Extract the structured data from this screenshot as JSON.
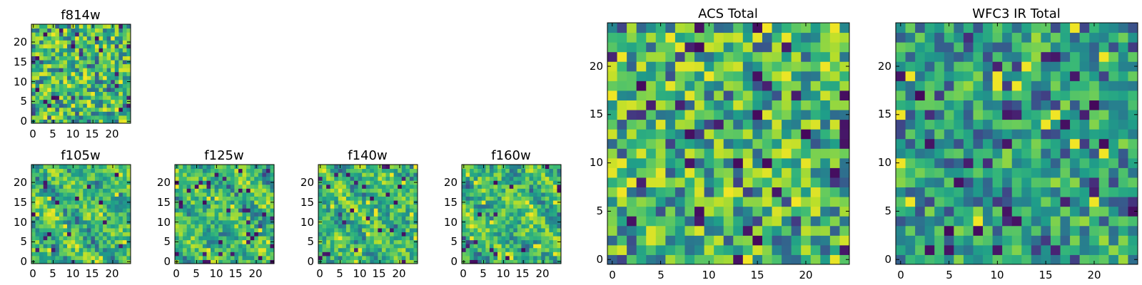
{
  "chart_data": [
    {
      "id": "f814w",
      "type": "heatmap",
      "title": "f814w",
      "xlabel": "",
      "ylabel": "",
      "xlim": [
        0,
        25
      ],
      "ylim": [
        0,
        25
      ],
      "grid_size": 25,
      "xticks": [
        "0",
        "5",
        "10",
        "15",
        "20"
      ],
      "yticks": [
        "0",
        "5",
        "10",
        "15",
        "20"
      ],
      "colormap": "viridis",
      "seed": 11,
      "lowfreq": 0.15
    },
    {
      "id": "f105w",
      "type": "heatmap",
      "title": "f105w",
      "xlabel": "",
      "ylabel": "",
      "xlim": [
        0,
        25
      ],
      "ylim": [
        0,
        25
      ],
      "grid_size": 25,
      "xticks": [
        "0",
        "5",
        "10",
        "15",
        "20"
      ],
      "yticks": [
        "0",
        "5",
        "10",
        "15",
        "20"
      ],
      "colormap": "viridis",
      "seed": 23,
      "lowfreq": 0.45
    },
    {
      "id": "f125w",
      "type": "heatmap",
      "title": "f125w",
      "xlabel": "",
      "ylabel": "",
      "xlim": [
        0,
        25
      ],
      "ylim": [
        0,
        25
      ],
      "grid_size": 25,
      "xticks": [
        "0",
        "5",
        "10",
        "15",
        "20"
      ],
      "yticks": [
        "0",
        "5",
        "10",
        "15",
        "20"
      ],
      "colormap": "viridis",
      "seed": 37,
      "lowfreq": 0.45
    },
    {
      "id": "f140w",
      "type": "heatmap",
      "title": "f140w",
      "xlabel": "",
      "ylabel": "",
      "xlim": [
        0,
        25
      ],
      "ylim": [
        0,
        25
      ],
      "grid_size": 25,
      "xticks": [
        "0",
        "5",
        "10",
        "15",
        "20"
      ],
      "yticks": [
        "0",
        "5",
        "10",
        "15",
        "20"
      ],
      "colormap": "viridis",
      "seed": 41,
      "lowfreq": 0.45
    },
    {
      "id": "f160w",
      "type": "heatmap",
      "title": "f160w",
      "xlabel": "",
      "ylabel": "",
      "xlim": [
        0,
        25
      ],
      "ylim": [
        0,
        25
      ],
      "grid_size": 25,
      "xticks": [
        "0",
        "5",
        "10",
        "15",
        "20"
      ],
      "yticks": [
        "0",
        "5",
        "10",
        "15",
        "20"
      ],
      "colormap": "viridis",
      "seed": 53,
      "lowfreq": 0.45
    },
    {
      "id": "acs-total",
      "type": "heatmap",
      "title": "ACS Total",
      "xlabel": "",
      "ylabel": "",
      "xlim": [
        0,
        25
      ],
      "ylim": [
        0,
        25
      ],
      "grid_size": 25,
      "xticks": [
        "0",
        "5",
        "10",
        "15",
        "20"
      ],
      "yticks": [
        "0",
        "5",
        "10",
        "15",
        "20"
      ],
      "colormap": "viridis",
      "seed": 67,
      "lowfreq": 0.1
    },
    {
      "id": "wfc3-ir-total",
      "type": "heatmap",
      "title": "WFC3 IR Total",
      "xlabel": "",
      "ylabel": "",
      "xlim": [
        0,
        25
      ],
      "ylim": [
        0,
        25
      ],
      "grid_size": 25,
      "xticks": [
        "0",
        "5",
        "10",
        "15",
        "20"
      ],
      "yticks": [
        "0",
        "5",
        "10",
        "15",
        "20"
      ],
      "colormap": "viridis",
      "seed": 79,
      "lowfreq": 0.25,
      "bias": -0.12
    }
  ]
}
